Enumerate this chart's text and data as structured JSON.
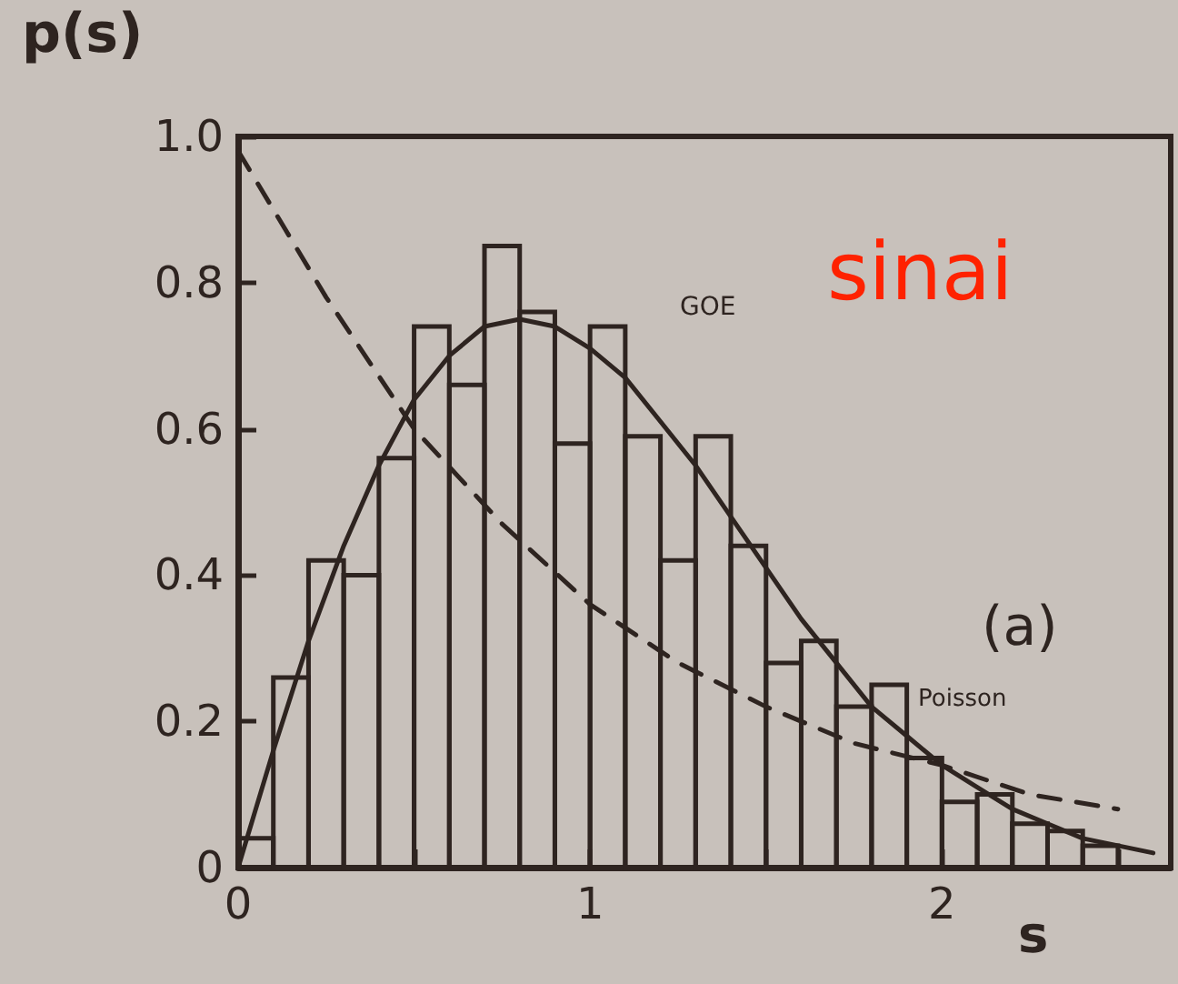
{
  "chart_data": {
    "type": "histogram",
    "xlabel": "s",
    "ylabel": "p(s)",
    "xlim": [
      0,
      2.65
    ],
    "xticks": [
      0,
      {
        "value": 0.5,
        "label": null
      },
      1,
      {
        "value": 1.5,
        "label": null
      },
      2,
      {
        "value": 2.5,
        "label": null
      }
    ],
    "ylim": [
      0,
      1
    ],
    "yticks": [
      0,
      0.2,
      0.4,
      0.6,
      0.8,
      {
        "value": 1,
        "label": "1.0"
      }
    ],
    "series": [
      {
        "color": "#2e2420",
        "bins": [
          0,
          0.1,
          0.2,
          0.3,
          0.4,
          0.5,
          0.6,
          0.7,
          0.8,
          0.9,
          1.0,
          1.1,
          1.2,
          1.3,
          1.4,
          1.5,
          1.6,
          1.7,
          1.8,
          1.9,
          2.0,
          2.1,
          2.2,
          2.3,
          2.4,
          2.5
        ],
        "values": [
          0.04,
          0.26,
          0.42,
          0.4,
          0.56,
          0.74,
          0.66,
          0.85,
          0.76,
          0.58,
          0.74,
          0.59,
          0.42,
          0.59,
          0.44,
          0.28,
          0.31,
          0.22,
          0.25,
          0.15,
          0.09,
          0.1,
          0.06,
          0.05,
          0.03
        ]
      },
      {
        "type": "line",
        "color": "#2e2420",
        "line_style": "solid",
        "x": [
          0,
          0.1,
          0.2,
          0.3,
          0.4,
          0.5,
          0.6,
          0.7,
          0.8,
          0.9,
          1.0,
          1.1,
          1.2,
          1.3,
          1.4,
          1.5,
          1.6,
          1.7,
          1.8,
          1.9,
          2.0,
          2.1,
          2.2,
          2.3,
          2.4,
          2.5,
          2.6
        ],
        "values": [
          0,
          0.16,
          0.31,
          0.44,
          0.55,
          0.64,
          0.7,
          0.74,
          0.75,
          0.74,
          0.71,
          0.67,
          0.61,
          0.55,
          0.48,
          0.41,
          0.34,
          0.28,
          0.22,
          0.18,
          0.14,
          0.11,
          0.08,
          0.06,
          0.04,
          0.03,
          0.02
        ]
      },
      {
        "type": "line",
        "color": "#2e2420",
        "line_style": "dashed",
        "x": [
          0,
          0.25,
          0.5,
          0.75,
          1.0,
          1.25,
          1.5,
          1.75,
          2.0,
          2.25,
          2.5
        ],
        "values": [
          0.98,
          0.78,
          0.6,
          0.47,
          0.36,
          0.28,
          0.22,
          0.17,
          0.14,
          0.1,
          0.08
        ]
      }
    ],
    "annotations": [
      "GOE",
      "Poisson",
      "(a)",
      "sinai"
    ]
  }
}
